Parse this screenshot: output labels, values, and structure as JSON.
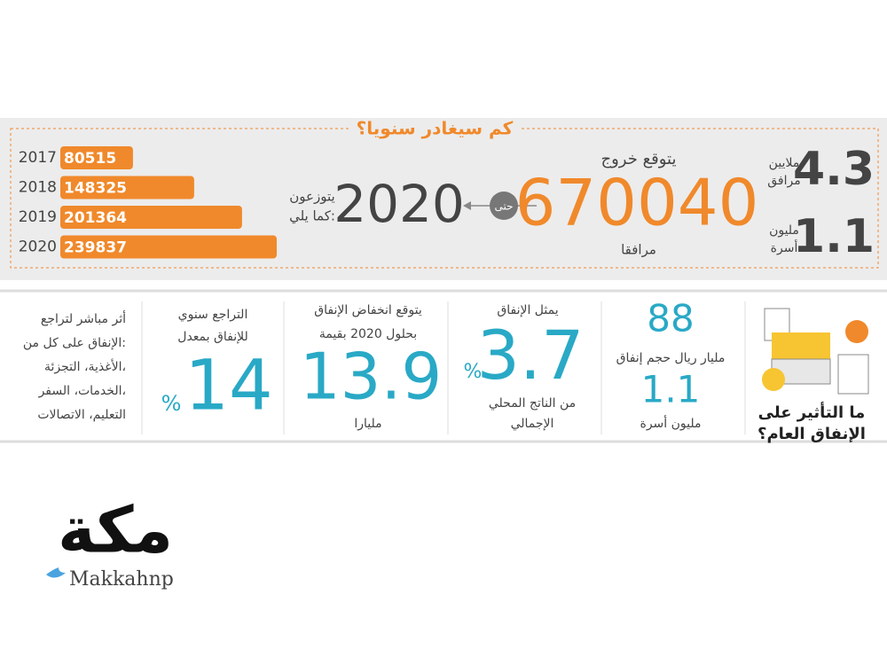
{
  "top": {
    "title": "كم سيغادر سنويا؟",
    "bars": {
      "categories": [
        "2017",
        "2018",
        "2019",
        "2020"
      ],
      "values": [
        80515,
        148325,
        201364,
        239837
      ]
    },
    "distribute": [
      "يتوزعون",
      "كما يلي:"
    ],
    "year": "2020",
    "until": "حتى",
    "expected": "يتوقع خروج",
    "total": "670040",
    "total_unit": "مرافقا",
    "companions": {
      "value": "4.3",
      "label": [
        "ملايين",
        "مرافق"
      ]
    },
    "families": {
      "value": "1.1",
      "label": [
        "مليون",
        "أسرة"
      ]
    }
  },
  "bottom": {
    "heading": [
      "ما التأثير على",
      "الإنفاق العام؟"
    ],
    "spending": {
      "value": "88",
      "label": "مليار ريال حجم إنفاق",
      "families": "1.1",
      "families_label": "مليون أسرة"
    },
    "gdp": {
      "top": "يمثل الإنفاق",
      "value": "3.7",
      "percent": "%",
      "label": [
        "من الناتج المحلي",
        "الإجمالي"
      ]
    },
    "decline": {
      "top": [
        "يتوقع انخفاض الإنفاق",
        "بحلول 2020 بقيمة"
      ],
      "value": "13.9",
      "unit": "مليارا"
    },
    "rate": {
      "top": [
        "التراجع سنوي",
        "للإنفاق بمعدل"
      ],
      "value": "14",
      "percent": "%"
    },
    "impact": [
      "أثر مباشر لتراجع",
      "الإنفاق على كل من:",
      "الأغذية، التجزئة،",
      "الخدمات، السفر،",
      "التعليم، الاتصالات"
    ]
  },
  "logo": {
    "name": "مكة",
    "handle": "Makkahnp"
  }
}
